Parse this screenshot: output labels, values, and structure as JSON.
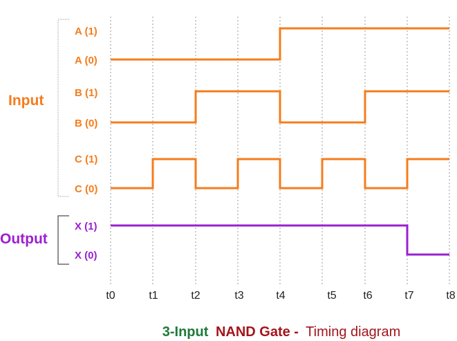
{
  "colors": {
    "input": "#f57c1c",
    "output": "#9b1fd0",
    "caption_green": "#1e7a3a",
    "caption_red": "#a3151b",
    "bracket": "#888888",
    "text": "#222222"
  },
  "groups": {
    "input": "Input",
    "output": "Output"
  },
  "time_labels": [
    "t0",
    "t1",
    "t2",
    "t3",
    "t4",
    "t5",
    "t6",
    "t7",
    "t8"
  ],
  "signals": [
    {
      "id": "A",
      "high_label": "A (1)",
      "low_label": "A (0)",
      "group": "input",
      "transitions": [
        0,
        0,
        0,
        0,
        1,
        1,
        1,
        1,
        1
      ]
    },
    {
      "id": "B",
      "high_label": "B (1)",
      "low_label": "B (0)",
      "group": "input",
      "transitions": [
        0,
        0,
        1,
        1,
        0,
        0,
        1,
        1,
        1
      ]
    },
    {
      "id": "C",
      "high_label": "C (1)",
      "low_label": "C (0)",
      "group": "input",
      "transitions": [
        0,
        1,
        0,
        1,
        0,
        1,
        0,
        1,
        1
      ]
    },
    {
      "id": "X",
      "high_label": "X (1)",
      "low_label": "X (0)",
      "group": "output",
      "transitions": [
        1,
        1,
        1,
        1,
        1,
        1,
        1,
        0,
        0
      ]
    }
  ],
  "caption": {
    "part1": "3-Input",
    "part2": "NAND Gate -",
    "part3": "Timing diagram"
  }
}
